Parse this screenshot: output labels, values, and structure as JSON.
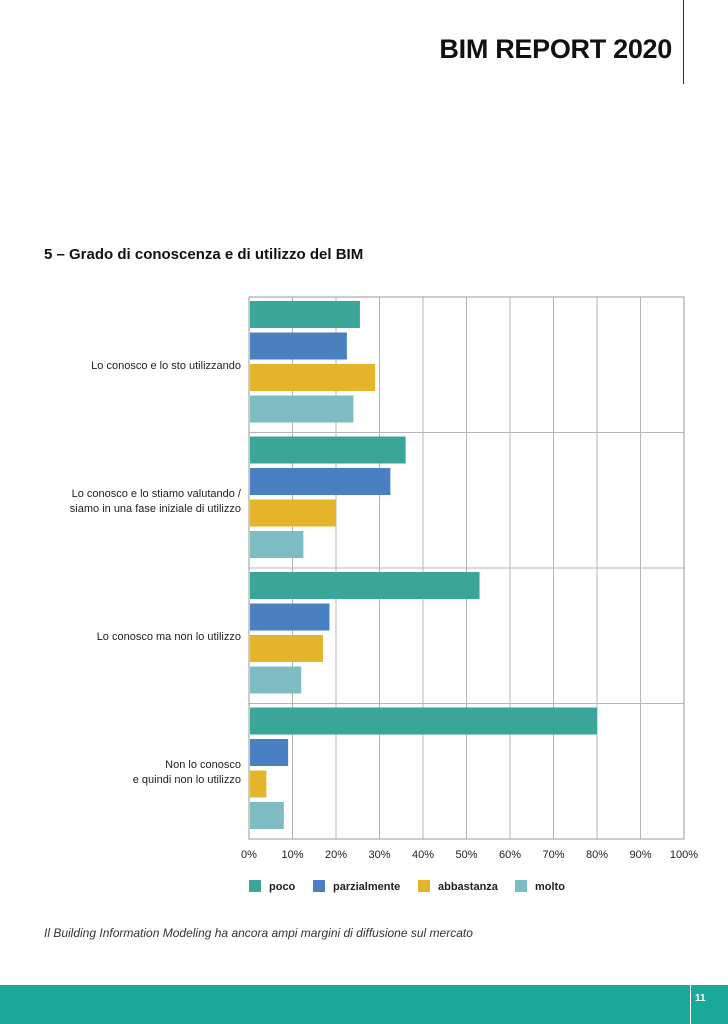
{
  "header": {
    "report_title": "BIM REPORT 2020"
  },
  "figure": {
    "title": "5 – Grado di conoscenza e di utilizzo del BIM",
    "caption": "Il Building Information Modeling ha ancora ampi margini di diffusione sul mercato"
  },
  "footer": {
    "page_number": "11",
    "band_color": "#1aa89b"
  },
  "chart_data": {
    "type": "bar",
    "orientation": "horizontal",
    "categories": [
      [
        "Lo conosco e lo sto utilizzando"
      ],
      [
        "Lo conosco e lo stiamo valutando /",
        "siamo in una fase iniziale di utilizzo"
      ],
      [
        "Lo conosco ma non lo utilizzo"
      ],
      [
        "Non lo conosco",
        "e quindi non lo utilizzo"
      ]
    ],
    "series": [
      {
        "name": "poco",
        "color": "#3aa69a",
        "values": [
          25.5,
          36,
          53,
          80
        ]
      },
      {
        "name": "parzialmente",
        "color": "#4a7fc1",
        "values": [
          22.5,
          32.5,
          18.5,
          9
        ]
      },
      {
        "name": "abbastanza",
        "color": "#e4b52a",
        "values": [
          29,
          20,
          17,
          4
        ]
      },
      {
        "name": "molto",
        "color": "#7dbcc3",
        "values": [
          24,
          12.5,
          12,
          8
        ]
      }
    ],
    "x_ticks": [
      "0%",
      "10%",
      "20%",
      "30%",
      "40%",
      "50%",
      "60%",
      "70%",
      "80%",
      "90%",
      "100%"
    ],
    "xlim": [
      0,
      100
    ],
    "xlabel": "",
    "ylabel": "",
    "grid": true,
    "legend_position": "bottom"
  }
}
